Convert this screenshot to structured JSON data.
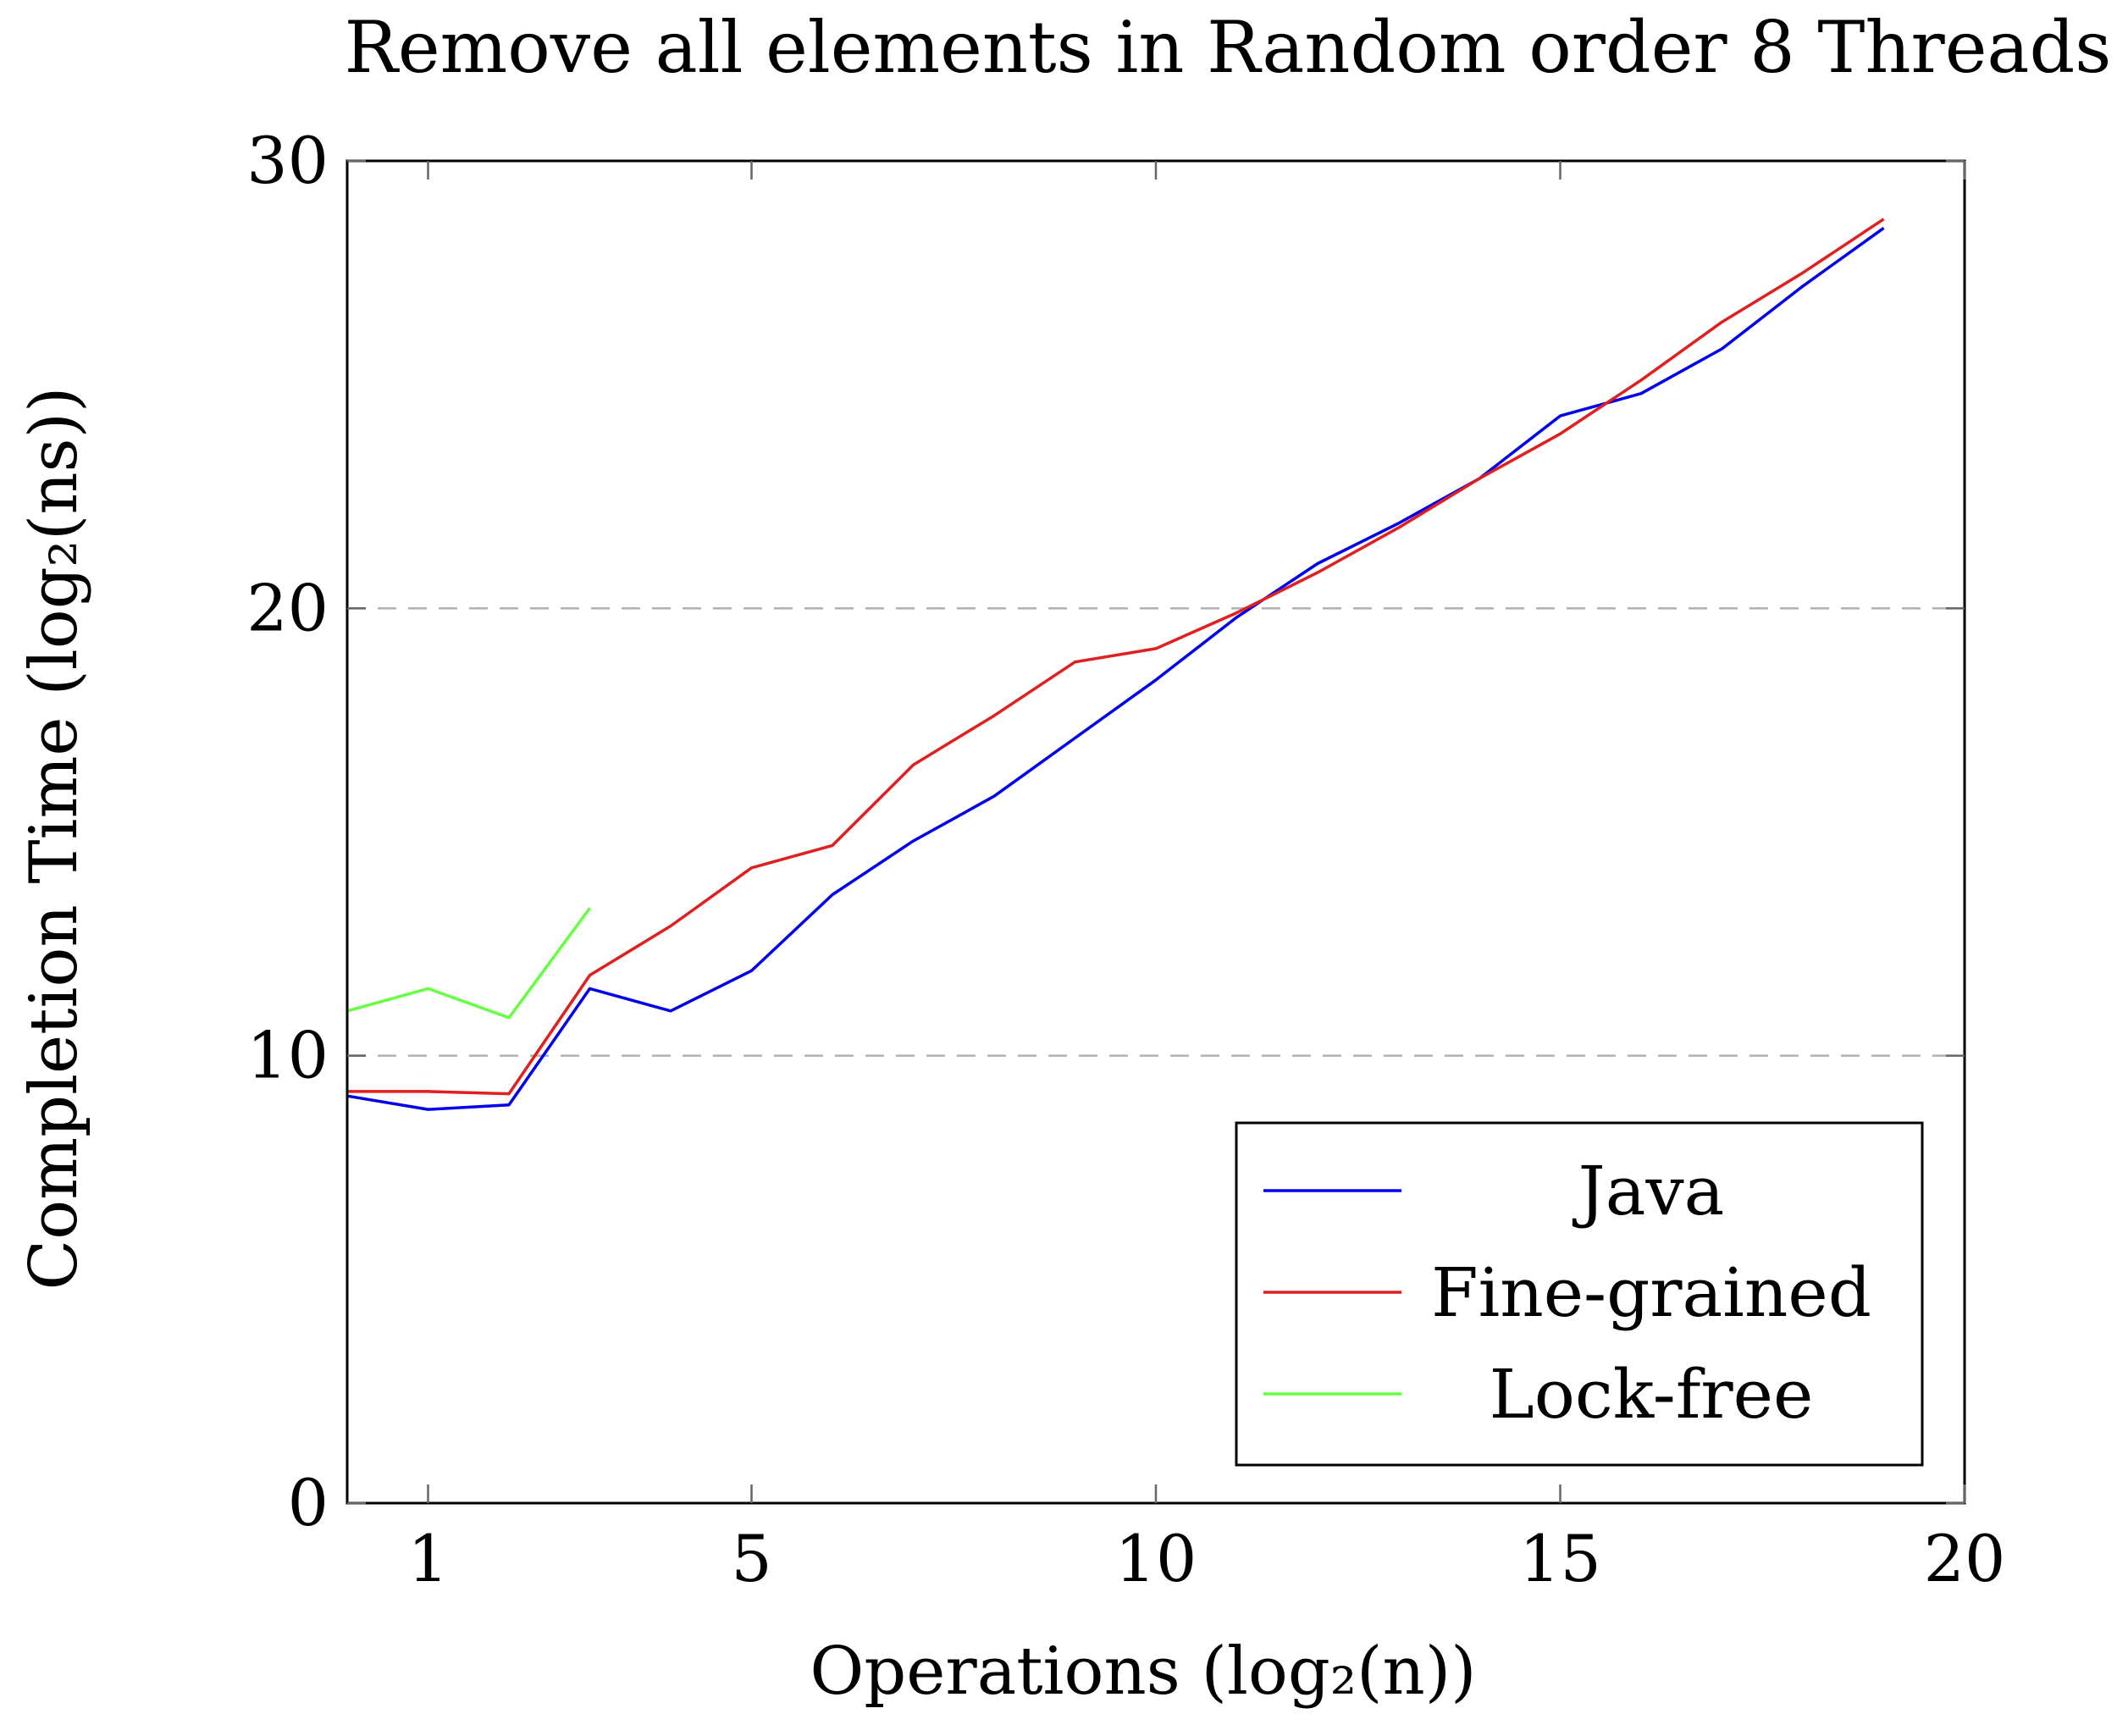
{
  "chart_data": {
    "type": "line",
    "title": "Remove all elements in Random order 8 Threads",
    "xlabel": "Operations (log₂(n))",
    "ylabel": "Completion Time (log₂(ns))",
    "xlim": [
      0,
      20
    ],
    "ylim": [
      0,
      30
    ],
    "xticks": [
      1,
      5,
      10,
      15,
      20
    ],
    "yticks": [
      0,
      10,
      20,
      30
    ],
    "grid": "horizontal dashed",
    "legend_position": "bottom-right",
    "series": [
      {
        "name": "Java",
        "color": "#0000ee",
        "x": [
          0,
          1,
          2,
          3,
          4,
          5,
          6,
          7,
          8,
          9,
          10,
          11,
          12,
          13,
          14,
          15,
          16,
          17,
          18,
          19
        ],
        "y": [
          9.1,
          8.8,
          8.9,
          11.5,
          11.0,
          11.9,
          13.6,
          14.8,
          15.8,
          17.1,
          18.4,
          19.8,
          21.0,
          21.9,
          22.9,
          24.3,
          24.8,
          25.8,
          27.2,
          28.5
        ]
      },
      {
        "name": "Fine-grained",
        "color": "#e02020",
        "x": [
          0,
          1,
          2,
          3,
          4,
          5,
          6,
          7,
          8,
          9,
          10,
          11,
          12,
          13,
          14,
          15,
          16,
          17,
          18,
          19
        ],
        "y": [
          9.2,
          9.2,
          9.15,
          11.8,
          12.9,
          14.2,
          14.7,
          16.5,
          17.6,
          18.8,
          19.1,
          19.9,
          20.8,
          21.8,
          22.9,
          23.9,
          25.1,
          26.4,
          27.5,
          28.7
        ]
      },
      {
        "name": "Lock-free",
        "color": "#66ff44",
        "x": [
          0,
          1,
          2,
          3
        ],
        "y": [
          11.0,
          11.5,
          10.85,
          13.3
        ]
      }
    ]
  }
}
